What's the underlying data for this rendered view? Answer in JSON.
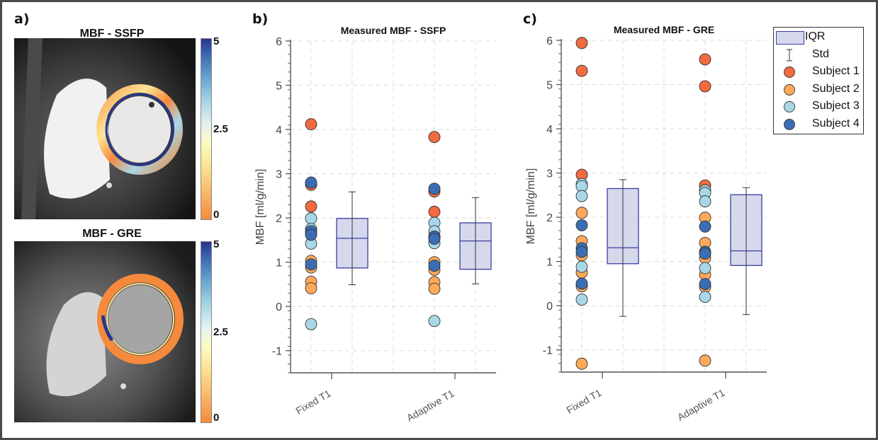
{
  "panels": {
    "a": {
      "label": "a)",
      "images": [
        {
          "title": "MBF - SSFP",
          "colorbar_ticks": [
            "5",
            "2.5",
            "0"
          ]
        },
        {
          "title": "MBF - GRE",
          "colorbar_ticks": [
            "5",
            "2.5",
            "0"
          ]
        }
      ],
      "colormap": [
        "#f58a3c",
        "#fbe494",
        "#e6f3f0",
        "#6aa6cf",
        "#26358f"
      ]
    },
    "b": {
      "label": "b)"
    },
    "c": {
      "label": "c)"
    }
  },
  "legend": {
    "items": [
      {
        "label": "IQR",
        "kind": "box"
      },
      {
        "label": "Std",
        "kind": "errorbar"
      },
      {
        "label": "Subject 1",
        "kind": "marker",
        "color": "#f26a3f"
      },
      {
        "label": "Subject 2",
        "kind": "marker",
        "color": "#fca95a"
      },
      {
        "label": "Subject 3",
        "kind": "marker",
        "color": "#a8d8e8"
      },
      {
        "label": "Subject 4",
        "kind": "marker",
        "color": "#3b6db3"
      }
    ]
  },
  "colors": {
    "subject1": "#f26a3f",
    "subject2": "#fca95a",
    "subject3": "#a8d8e8",
    "subject4": "#3b6db3",
    "box_fill": "#d6d8ec",
    "box_edge": "#3a3fa0"
  },
  "chart_data": [
    {
      "type": "scatter",
      "title": "Measured MBF - SSFP",
      "xlabel": "",
      "ylabel": "MBF [ml/g/min]",
      "ylim": [
        -1.5,
        6
      ],
      "yticks": [
        -1,
        0,
        1,
        2,
        3,
        4,
        5,
        6
      ],
      "categories": [
        "Fixed T1",
        "Adaptive T1"
      ],
      "grid": true,
      "series": [
        {
          "name": "Subject 1",
          "values": [
            [
              4.12,
              2.75,
              2.26
            ],
            [
              3.83,
              2.6,
              2.14
            ]
          ]
        },
        {
          "name": "Subject 2",
          "values": [
            [
              1.03,
              0.88,
              0.56,
              0.41
            ],
            [
              1.0,
              0.83,
              0.55,
              0.4
            ]
          ]
        },
        {
          "name": "Subject 3",
          "values": [
            [
              1.99,
              1.75,
              1.65,
              1.42,
              -0.4
            ],
            [
              1.89,
              1.7,
              1.58,
              1.43,
              -0.33
            ]
          ]
        },
        {
          "name": "Subject 4",
          "values": [
            [
              2.8,
              1.7,
              1.62,
              0.95
            ],
            [
              2.66,
              1.58,
              1.53,
              0.92
            ]
          ]
        }
      ],
      "boxes": [
        {
          "category": "Fixed T1",
          "q1": 0.87,
          "median": 1.54,
          "q3": 1.99,
          "std_low": 0.49,
          "std_high": 2.59
        },
        {
          "category": "Adaptive T1",
          "q1": 0.84,
          "median": 1.48,
          "q3": 1.89,
          "std_low": 0.51,
          "std_high": 2.46
        }
      ]
    },
    {
      "type": "scatter",
      "title": "Measured MBF - GRE",
      "xlabel": "",
      "ylabel": "MBF [ml/g/min]",
      "ylim": [
        -1.5,
        6
      ],
      "yticks": [
        -1,
        0,
        1,
        2,
        3,
        4,
        5,
        6
      ],
      "categories": [
        "Fixed T1",
        "Adaptive T1"
      ],
      "grid": true,
      "legend": "top-right (outside)",
      "series": [
        {
          "name": "Subject 1",
          "values": [
            [
              5.94,
              5.31,
              2.96
            ],
            [
              5.57,
              4.96,
              2.72
            ]
          ]
        },
        {
          "name": "Subject 2",
          "values": [
            [
              2.1,
              1.46,
              1.14,
              0.75,
              0.44,
              -1.31
            ],
            [
              1.99,
              1.42,
              1.08,
              0.7,
              0.42,
              -1.24
            ]
          ]
        },
        {
          "name": "Subject 3",
          "values": [
            [
              2.75,
              2.7,
              2.48,
              0.88,
              0.14
            ],
            [
              2.61,
              2.55,
              2.36,
              0.85,
              0.2
            ]
          ]
        },
        {
          "name": "Subject 4",
          "values": [
            [
              1.82,
              1.3,
              1.22,
              0.5
            ],
            [
              1.79,
              1.22,
              1.18,
              0.49
            ]
          ]
        }
      ],
      "boxes": [
        {
          "category": "Fixed T1",
          "q1": 0.95,
          "median": 1.31,
          "q3": 2.65,
          "std_low": -0.24,
          "std_high": 2.85
        },
        {
          "category": "Adaptive T1",
          "q1": 0.91,
          "median": 1.24,
          "q3": 2.51,
          "std_low": -0.2,
          "std_high": 2.67
        }
      ]
    }
  ]
}
